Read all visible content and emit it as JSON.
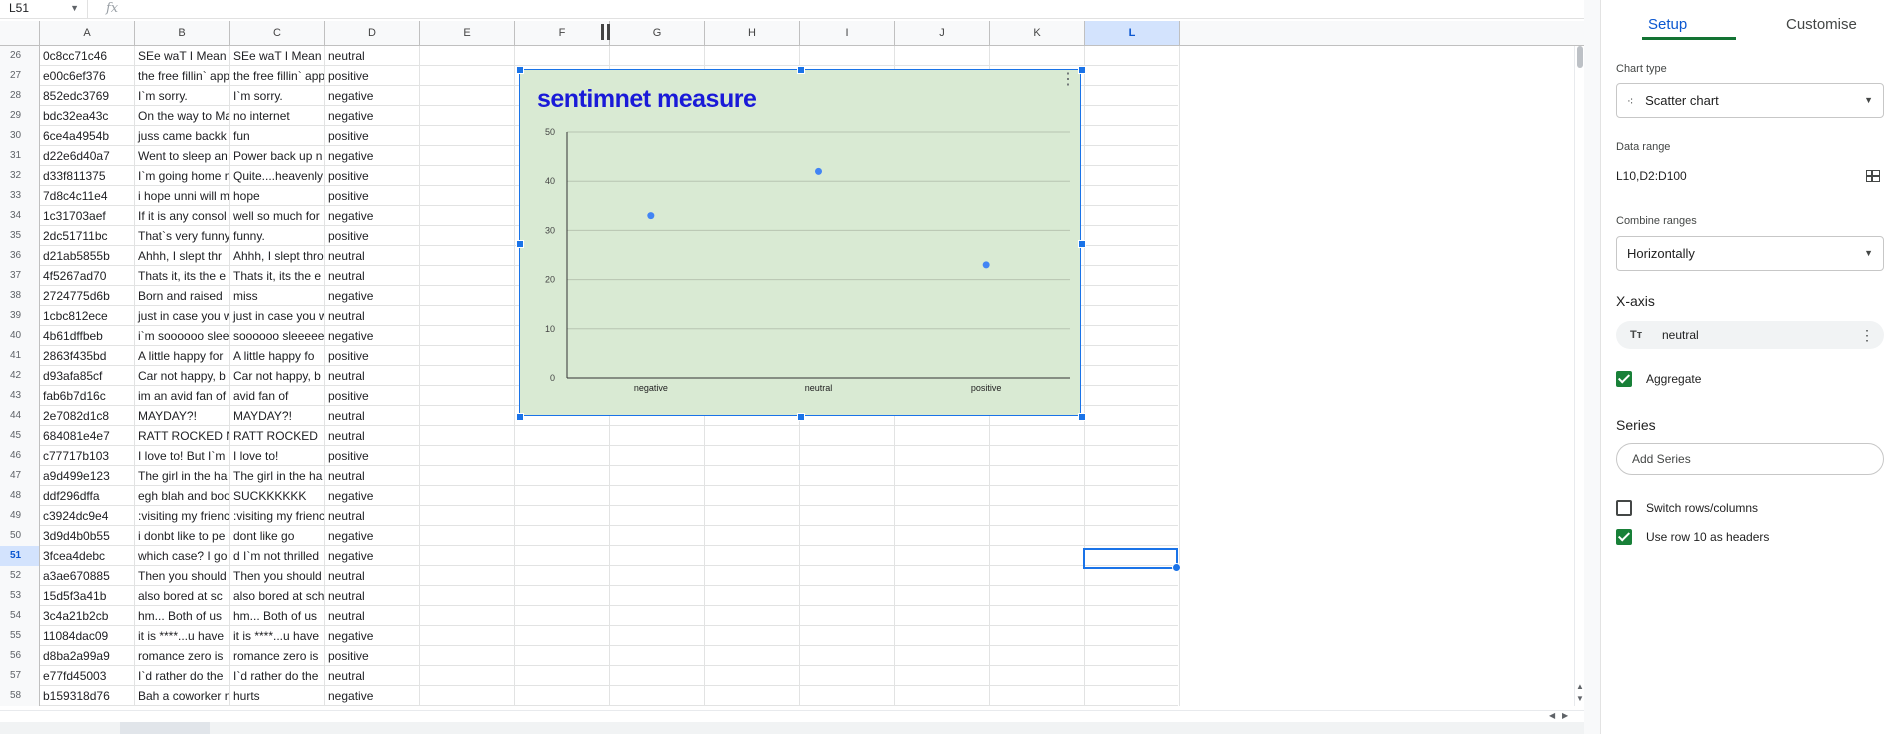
{
  "formula_bar": {
    "name_box": "L51",
    "fx": "fx"
  },
  "columns": [
    "A",
    "B",
    "C",
    "D",
    "E",
    "F",
    "G",
    "H",
    "I",
    "J",
    "K",
    "L"
  ],
  "selected_column": "L",
  "selected_row": "51",
  "rows": [
    {
      "num": "26",
      "a": "0c8cc71c46",
      "b": "SEe waT I Mean",
      "c": "SEe waT I Mean",
      "d": "neutral"
    },
    {
      "num": "27",
      "a": "e00c6ef376",
      "b": "the free fillin` app",
      "c": "the free fillin` app",
      "d": "positive"
    },
    {
      "num": "28",
      "a": "852edc3769",
      "b": "I`m sorry.",
      "c": "I`m sorry.",
      "d": "negative"
    },
    {
      "num": "29",
      "a": "bdc32ea43c",
      "b": "On the way to Ma",
      "c": "no internet",
      "d": "negative"
    },
    {
      "num": "30",
      "a": "6ce4a4954b",
      "b": "juss came backk",
      "c": "fun",
      "d": "positive"
    },
    {
      "num": "31",
      "a": "d22e6d40a7",
      "b": "Went to sleep an",
      "c": "Power back up n",
      "d": "negative"
    },
    {
      "num": "32",
      "a": "d33f811375",
      "b": "I`m going home n",
      "c": "Quite....heavenly",
      "d": "positive"
    },
    {
      "num": "33",
      "a": "7d8c4c11e4",
      "b": "i hope unni will m",
      "c": "hope",
      "d": "positive"
    },
    {
      "num": "34",
      "a": "1c31703aef",
      "b": "If it is any consol",
      "c": "well so much for",
      "d": "negative"
    },
    {
      "num": "35",
      "a": "2dc51711bc",
      "b": "That`s very funny",
      "c": "funny.",
      "d": "positive"
    },
    {
      "num": "36",
      "a": "d21ab5855b",
      "b": " Ahhh, I slept thr",
      "c": "Ahhh, I slept thro",
      "d": "neutral"
    },
    {
      "num": "37",
      "a": "4f5267ad70",
      "b": "Thats it, its the e",
      "c": "Thats it, its the e",
      "d": "neutral"
    },
    {
      "num": "38",
      "a": "2724775d6b",
      "b": "Born and raised",
      "c": "miss",
      "d": "negative"
    },
    {
      "num": "39",
      "a": "1cbc812ece",
      "b": "just in case you w",
      "c": "just in case you w",
      "d": "neutral"
    },
    {
      "num": "40",
      "a": "4b61dffbeb",
      "b": "i`m soooooo slee",
      "c": "soooooo sleeeee",
      "d": "negative"
    },
    {
      "num": "41",
      "a": "2863f435bd",
      "b": "A little happy for",
      "c": "A little happy fo",
      "d": "positive"
    },
    {
      "num": "42",
      "a": "d93afa85cf",
      "b": " Car not happy, b",
      "c": "Car not happy, b",
      "d": "neutral"
    },
    {
      "num": "43",
      "a": "fab6b7d16c",
      "b": "im an avid fan of",
      "c": "avid fan of",
      "d": "positive"
    },
    {
      "num": "44",
      "a": "2e7082d1c8",
      "b": "MAYDAY?!",
      "c": "MAYDAY?!",
      "d": "neutral"
    },
    {
      "num": "45",
      "a": "684081e4e7",
      "b": "RATT ROCKED N",
      "c": "RATT ROCKED",
      "d": "neutral"
    },
    {
      "num": "46",
      "a": "c77717b103",
      "b": "I love to! But I`m",
      "c": "I love to!",
      "d": "positive"
    },
    {
      "num": "47",
      "a": "a9d499e123",
      "b": "The girl in the ha",
      "c": "The girl in the ha",
      "d": "neutral"
    },
    {
      "num": "48",
      "a": "ddf296dffa",
      "b": "egh blah and boo",
      "c": "SUCKKKKKK",
      "d": "negative"
    },
    {
      "num": "49",
      "a": "c3924dc9e4",
      "b": ":visiting my frienc",
      "c": ":visiting my frienc",
      "d": "neutral"
    },
    {
      "num": "50",
      "a": "3d9d4b0b55",
      "b": "i donbt like to pe",
      "c": "dont like go",
      "d": "negative"
    },
    {
      "num": "51",
      "a": "3fcea4debc",
      "b": "which case? I go",
      "c": "d I`m not thrilled",
      "d": "negative"
    },
    {
      "num": "52",
      "a": "a3ae670885",
      "b": "Then you should",
      "c": "Then you should",
      "d": "neutral"
    },
    {
      "num": "53",
      "a": "15d5f3a41b",
      "b": " also bored at sc",
      "c": "also bored at sch",
      "d": "neutral"
    },
    {
      "num": "54",
      "a": "3c4a21b2cb",
      "b": "hm... Both of us",
      "c": "hm... Both of us",
      "d": "neutral"
    },
    {
      "num": "55",
      "a": "11084dac09",
      "b": "it is ****...u have",
      "c": "it is ****...u have",
      "d": "negative"
    },
    {
      "num": "56",
      "a": "d8ba2a99a9",
      "b": "romance zero is",
      "c": "romance zero is",
      "d": "positive"
    },
    {
      "num": "57",
      "a": "e77fd45003",
      "b": "I`d rather do the",
      "c": "I`d rather do the",
      "d": "neutral"
    },
    {
      "num": "58",
      "a": "b159318d76",
      "b": "Bah a coworker n",
      "c": "hurts",
      "d": "negative"
    }
  ],
  "chart_data": {
    "type": "scatter",
    "title": "sentimnet measure",
    "categories": [
      "negative",
      "neutral",
      "positive"
    ],
    "values": [
      33,
      42,
      23
    ],
    "y_ticks": [
      "0",
      "10",
      "20",
      "30",
      "40",
      "50"
    ],
    "ylim": [
      0,
      50
    ],
    "grid": true,
    "point_color": "#4285f4",
    "background_color": "#d9ead3",
    "title_color": "#1a1ad8"
  },
  "panel": {
    "tabs": {
      "setup": "Setup",
      "customise": "Customise"
    },
    "chart_type_label": "Chart type",
    "chart_type_value": "Scatter chart",
    "data_range_label": "Data range",
    "data_range_value": "L10,D2:D100",
    "combine_label": "Combine ranges",
    "combine_value": "Horizontally",
    "xaxis_title": "X-axis",
    "xaxis_chip_icon": "Tт",
    "xaxis_value": "neutral",
    "aggregate_label": "Aggregate",
    "series_title": "Series",
    "add_series_label": "Add Series",
    "switch_label": "Switch rows/columns",
    "headers_label": "Use row 10 as headers"
  }
}
